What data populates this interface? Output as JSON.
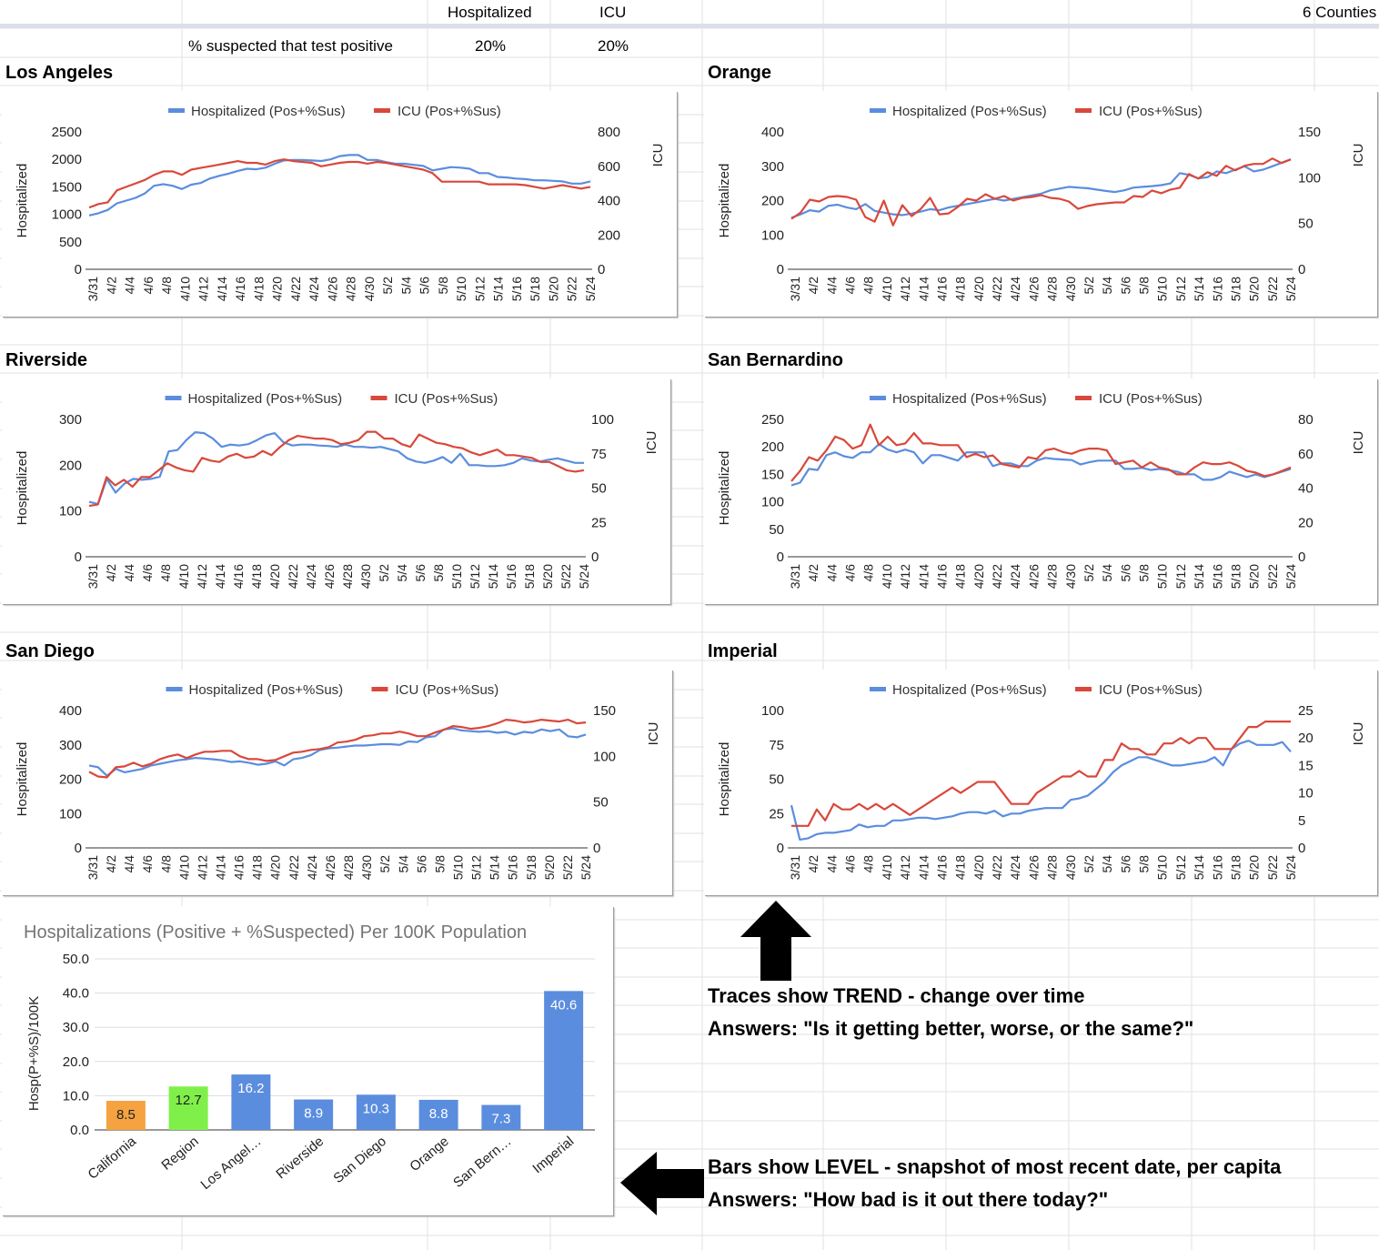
{
  "header": {
    "col_hosp": "Hospitalized",
    "col_icu": "ICU",
    "counties_label": "6 Counties",
    "row_label": "% suspected that test positive",
    "hosp_pct": "20%",
    "icu_pct": "20%"
  },
  "legend": {
    "hosp": "Hospitalized (Pos+%Sus)",
    "icu": "ICU (Pos+%Sus)"
  },
  "axes": {
    "left": "Hospitalized",
    "right": "ICU"
  },
  "colors": {
    "hosp": "#5b8dde",
    "icu": "#d9483b"
  },
  "notes": {
    "trend1": "Traces show TREND - change over time",
    "trend2": "Answers: \"Is it getting better, worse, or the same?\"",
    "level1": "Bars show LEVEL - snapshot of most recent date, per capita",
    "level2": "Answers: \"How bad is it out there today?\""
  },
  "chart_data": [
    {
      "type": "line",
      "county": "Los Angeles",
      "x_labels": [
        "3/31",
        "4/2",
        "4/4",
        "4/6",
        "4/8",
        "4/10",
        "4/12",
        "4/14",
        "4/16",
        "4/18",
        "4/20",
        "4/22",
        "4/24",
        "4/26",
        "4/28",
        "4/30",
        "5/2",
        "5/4",
        "5/6",
        "5/8",
        "5/10",
        "5/12",
        "5/14",
        "5/16",
        "5/18",
        "5/20",
        "5/22",
        "5/24"
      ],
      "ylim_left": [
        0,
        2500
      ],
      "yticks_left": [
        0,
        500,
        1000,
        1500,
        2000,
        2500
      ],
      "ylim_right": [
        0,
        800
      ],
      "yticks_right": [
        0,
        200,
        400,
        600,
        800
      ],
      "hosp": [
        980,
        1020,
        1080,
        1200,
        1250,
        1300,
        1380,
        1520,
        1550,
        1520,
        1460,
        1540,
        1570,
        1650,
        1700,
        1740,
        1790,
        1830,
        1820,
        1850,
        1920,
        1980,
        1990,
        1990,
        1980,
        1970,
        2000,
        2060,
        2080,
        2080,
        1990,
        1990,
        1950,
        1920,
        1920,
        1900,
        1880,
        1800,
        1830,
        1860,
        1850,
        1830,
        1750,
        1750,
        1680,
        1670,
        1650,
        1640,
        1620,
        1620,
        1610,
        1600,
        1560,
        1560,
        1600
      ],
      "icu": [
        360,
        380,
        390,
        460,
        480,
        500,
        520,
        550,
        570,
        570,
        550,
        580,
        590,
        600,
        610,
        620,
        630,
        620,
        620,
        610,
        630,
        640,
        630,
        625,
        620,
        600,
        610,
        620,
        625,
        625,
        615,
        625,
        620,
        610,
        600,
        590,
        580,
        560,
        510,
        510,
        510,
        510,
        510,
        495,
        495,
        495,
        495,
        490,
        480,
        470,
        480,
        490,
        480,
        470,
        480
      ]
    },
    {
      "type": "line",
      "county": "Orange",
      "x_labels": [
        "3/31",
        "4/2",
        "4/4",
        "4/6",
        "4/8",
        "4/10",
        "4/12",
        "4/14",
        "4/16",
        "4/18",
        "4/20",
        "4/22",
        "4/24",
        "4/26",
        "4/28",
        "4/30",
        "5/2",
        "5/4",
        "5/6",
        "5/8",
        "5/10",
        "5/12",
        "5/14",
        "5/16",
        "5/18",
        "5/20",
        "5/22",
        "5/24"
      ],
      "ylim_left": [
        0,
        400
      ],
      "yticks_left": [
        0,
        100,
        200,
        300,
        400
      ],
      "ylim_right": [
        0,
        150
      ],
      "yticks_right": [
        0,
        50,
        100,
        150
      ],
      "hosp": [
        150,
        160,
        172,
        168,
        185,
        188,
        180,
        175,
        190,
        170,
        165,
        160,
        158,
        162,
        168,
        175,
        172,
        180,
        185,
        190,
        195,
        200,
        205,
        200,
        205,
        210,
        215,
        220,
        230,
        235,
        240,
        238,
        236,
        232,
        228,
        225,
        230,
        238,
        240,
        242,
        245,
        250,
        280,
        275,
        265,
        268,
        285,
        280,
        290,
        300,
        285,
        290,
        300,
        310,
        320
      ],
      "icu": [
        55,
        62,
        76,
        74,
        79,
        80,
        79,
        76,
        57,
        52,
        75,
        48,
        70,
        58,
        66,
        78,
        60,
        61,
        68,
        77,
        75,
        82,
        77,
        80,
        75,
        78,
        79,
        81,
        78,
        77,
        74,
        66,
        69,
        71,
        72,
        73,
        73,
        80,
        79,
        86,
        83,
        87,
        89,
        104,
        99,
        106,
        102,
        113,
        108,
        113,
        115,
        115,
        121,
        116,
        120
      ]
    },
    {
      "type": "line",
      "county": "Riverside",
      "x_labels": [
        "3/31",
        "4/2",
        "4/4",
        "4/6",
        "4/8",
        "4/10",
        "4/12",
        "4/14",
        "4/16",
        "4/18",
        "4/20",
        "4/22",
        "4/24",
        "4/26",
        "4/28",
        "4/30",
        "5/2",
        "5/4",
        "5/6",
        "5/8",
        "5/10",
        "5/12",
        "5/14",
        "5/16",
        "5/18",
        "5/20",
        "5/22",
        "5/24"
      ],
      "ylim_left": [
        0,
        300
      ],
      "yticks_left": [
        0,
        100,
        200,
        300
      ],
      "ylim_right": [
        0,
        100
      ],
      "yticks_right": [
        0,
        25,
        50,
        75,
        100
      ],
      "hosp": [
        120,
        115,
        170,
        140,
        160,
        170,
        168,
        170,
        175,
        230,
        233,
        255,
        272,
        270,
        258,
        240,
        245,
        243,
        246,
        255,
        265,
        270,
        250,
        243,
        245,
        245,
        243,
        242,
        240,
        245,
        240,
        240,
        238,
        240,
        235,
        230,
        215,
        208,
        205,
        210,
        218,
        205,
        225,
        200,
        200,
        198,
        198,
        200,
        205,
        215,
        210,
        208,
        212,
        215,
        210,
        205,
        205
      ],
      "icu": [
        37,
        38,
        58,
        52,
        56,
        51,
        58,
        58,
        63,
        68,
        65,
        63,
        62,
        72,
        70,
        69,
        73,
        75,
        72,
        73,
        77,
        74,
        80,
        85,
        88,
        87,
        86,
        86,
        85,
        82,
        83,
        85,
        91,
        91,
        86,
        86,
        82,
        80,
        89,
        86,
        83,
        82,
        80,
        79,
        76,
        74,
        76,
        78,
        74,
        74,
        73,
        72,
        69,
        69,
        66,
        63,
        62,
        63
      ]
    },
    {
      "type": "line",
      "county": "San Bernardino",
      "x_labels": [
        "3/31",
        "4/2",
        "4/4",
        "4/6",
        "4/8",
        "4/10",
        "4/12",
        "4/14",
        "4/16",
        "4/18",
        "4/20",
        "4/22",
        "4/24",
        "4/26",
        "4/28",
        "4/30",
        "5/2",
        "5/4",
        "5/6",
        "5/8",
        "5/10",
        "5/12",
        "5/14",
        "5/16",
        "5/18",
        "5/20",
        "5/22",
        "5/24"
      ],
      "ylim_left": [
        0,
        250
      ],
      "yticks_left": [
        0,
        50,
        100,
        150,
        200,
        250
      ],
      "ylim_right": [
        0,
        80
      ],
      "yticks_right": [
        0,
        20,
        40,
        60,
        80
      ],
      "hosp": [
        130,
        135,
        160,
        158,
        185,
        190,
        183,
        180,
        190,
        190,
        205,
        195,
        190,
        195,
        190,
        170,
        185,
        185,
        180,
        175,
        190,
        190,
        190,
        165,
        170,
        170,
        165,
        165,
        175,
        180,
        178,
        177,
        176,
        168,
        172,
        175,
        175,
        175,
        160,
        160,
        162,
        158,
        160,
        158,
        155,
        150,
        150,
        140,
        140,
        145,
        155,
        150,
        145,
        150,
        145,
        150,
        155,
        160
      ],
      "icu": [
        44,
        50,
        58,
        56,
        62,
        70,
        68,
        63,
        65,
        77,
        65,
        70,
        65,
        66,
        72,
        66,
        66,
        65,
        65,
        65,
        58,
        60,
        58,
        59,
        54,
        53,
        52,
        58,
        57,
        62,
        63,
        61,
        60,
        62,
        63,
        63,
        62,
        54,
        55,
        56,
        52,
        55,
        52,
        51,
        48,
        48,
        52,
        55,
        54,
        54,
        55,
        53,
        50,
        49,
        47,
        48,
        50,
        52
      ]
    },
    {
      "type": "line",
      "county": "San Diego",
      "x_labels": [
        "3/31",
        "4/2",
        "4/4",
        "4/6",
        "4/8",
        "4/10",
        "4/12",
        "4/14",
        "4/16",
        "4/18",
        "4/20",
        "4/22",
        "4/24",
        "4/26",
        "4/28",
        "4/30",
        "5/2",
        "5/4",
        "5/6",
        "5/8",
        "5/10",
        "5/12",
        "5/14",
        "5/16",
        "5/18",
        "5/20",
        "5/22",
        "5/24"
      ],
      "ylim_left": [
        0,
        400
      ],
      "yticks_left": [
        0,
        100,
        200,
        300,
        400
      ],
      "ylim_right": [
        0,
        150
      ],
      "yticks_right": [
        0,
        50,
        100,
        150
      ],
      "hosp": [
        240,
        235,
        210,
        230,
        220,
        225,
        230,
        240,
        245,
        250,
        255,
        258,
        262,
        260,
        258,
        255,
        250,
        252,
        248,
        242,
        245,
        252,
        240,
        258,
        262,
        270,
        285,
        290,
        292,
        295,
        298,
        298,
        300,
        302,
        302,
        300,
        310,
        308,
        322,
        325,
        345,
        348,
        342,
        340,
        338,
        340,
        335,
        338,
        330,
        338,
        335,
        345,
        340,
        345,
        325,
        322,
        330
      ],
      "icu": [
        83,
        78,
        77,
        88,
        89,
        93,
        89,
        92,
        97,
        100,
        102,
        98,
        102,
        105,
        105,
        106,
        106,
        100,
        97,
        97,
        95,
        96,
        100,
        104,
        105,
        107,
        108,
        110,
        115,
        116,
        118,
        122,
        123,
        125,
        125,
        127,
        125,
        122,
        122,
        126,
        129,
        133,
        132,
        130,
        131,
        133,
        136,
        140,
        139,
        137,
        138,
        140,
        139,
        138,
        140,
        136,
        137
      ]
    },
    {
      "type": "line",
      "county": "Imperial",
      "x_labels": [
        "3/31",
        "4/2",
        "4/4",
        "4/6",
        "4/8",
        "4/10",
        "4/12",
        "4/14",
        "4/16",
        "4/18",
        "4/20",
        "4/22",
        "4/24",
        "4/26",
        "4/28",
        "4/30",
        "5/2",
        "5/4",
        "5/6",
        "5/8",
        "5/10",
        "5/12",
        "5/14",
        "5/16",
        "5/18",
        "5/20",
        "5/22",
        "5/24"
      ],
      "ylim_left": [
        0,
        100
      ],
      "yticks_left": [
        0,
        25,
        50,
        75,
        100
      ],
      "ylim_right": [
        0,
        25
      ],
      "yticks_right": [
        0,
        5,
        10,
        15,
        20,
        25
      ],
      "hosp": [
        31,
        6,
        7,
        10,
        11,
        11,
        12,
        13,
        17,
        15,
        16,
        16,
        20,
        20,
        21,
        22,
        22,
        21,
        22,
        23,
        25,
        26,
        26,
        25,
        27,
        23,
        25,
        25,
        27,
        28,
        29,
        29,
        29,
        35,
        36,
        38,
        43,
        48,
        55,
        60,
        63,
        66,
        66,
        64,
        62,
        60,
        60,
        61,
        62,
        63,
        66,
        60,
        72,
        76,
        78,
        75,
        75,
        75,
        77,
        70
      ],
      "icu": [
        4,
        4,
        4,
        7,
        5,
        8,
        7,
        7,
        8,
        7,
        8,
        7,
        8,
        7,
        6,
        7,
        8,
        9,
        10,
        11,
        10,
        11,
        12,
        12,
        12,
        10,
        8,
        8,
        8,
        10,
        11,
        12,
        13,
        13,
        14,
        13,
        13,
        16,
        16,
        19,
        18,
        18,
        17,
        17,
        19,
        19,
        20,
        19,
        20,
        20,
        18,
        18,
        18,
        20,
        22,
        22,
        23,
        23,
        23,
        23
      ]
    },
    {
      "type": "bar",
      "title": "Hospitalizations (Positive + %Suspected) Per 100K Population",
      "ylabel": "Hosp(P+%S)/100K",
      "ylim": [
        0,
        50
      ],
      "yticks": [
        "0.0",
        "10.0",
        "20.0",
        "30.0",
        "40.0",
        "50.0"
      ],
      "categories": [
        "California",
        "Region",
        "Los Angel…",
        "Riverside",
        "San Diego",
        "Orange",
        "San Bern…",
        "Imperial"
      ],
      "values": [
        8.5,
        12.7,
        16.2,
        8.9,
        10.3,
        8.8,
        7.3,
        40.6
      ],
      "labels": [
        "8.5",
        "12.7",
        "16.2",
        "8.9",
        "10.3",
        "8.8",
        "7.3",
        "40.6"
      ],
      "colors": [
        "#f4a340",
        "#7ff04a",
        "#5b8dde",
        "#5b8dde",
        "#5b8dde",
        "#5b8dde",
        "#5b8dde",
        "#5b8dde"
      ]
    }
  ]
}
